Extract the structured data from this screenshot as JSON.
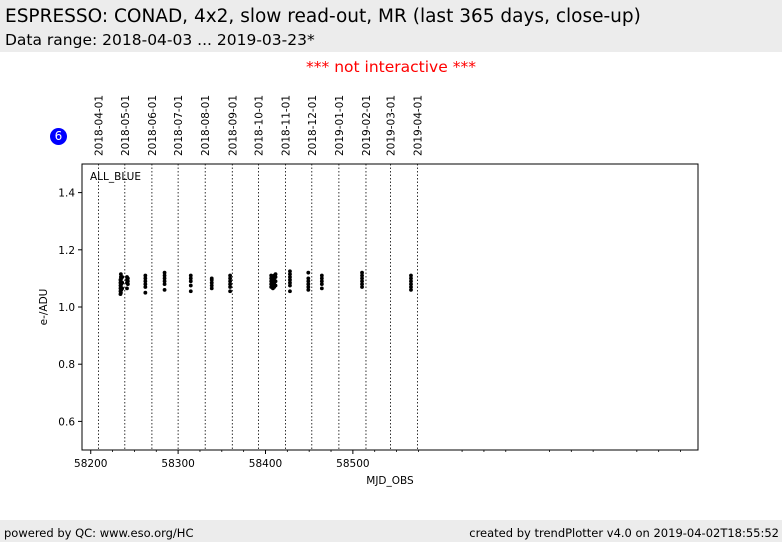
{
  "header": {
    "title": "ESPRESSO: CONAD, 4x2, slow read-out, MR (last 365 days, close-up)",
    "subtitle": "Data range: 2018-04-03 ... 2019-03-23*"
  },
  "notice": "*** not interactive ***",
  "badge": "6",
  "footer": {
    "left": "powered by QC: www.eso.org/HC",
    "right": "created by trendPlotter v4.0 on 2019-04-02T18:55:52"
  },
  "colors": {
    "header_bg": "#ececec",
    "notice": "#ff0000",
    "badge": "#0000ff",
    "points": "#000000"
  },
  "chart_data": {
    "type": "scatter",
    "panel_label": "ALL_BLUE",
    "xlabel": "MJD_OBS",
    "ylabel": "e-/ADU",
    "xlim": [
      58190,
      58895
    ],
    "ylim": [
      0.5,
      1.5
    ],
    "x_ticks": [
      58200,
      58300,
      58400,
      58500
    ],
    "y_ticks": [
      0.6,
      0.8,
      1.0,
      1.2,
      1.4
    ],
    "grid": false,
    "month_lines": [
      {
        "label": "2018-04-01",
        "mjd": 58209
      },
      {
        "label": "2018-05-01",
        "mjd": 58239
      },
      {
        "label": "2018-06-01",
        "mjd": 58270
      },
      {
        "label": "2018-07-01",
        "mjd": 58300
      },
      {
        "label": "2018-08-01",
        "mjd": 58331
      },
      {
        "label": "2018-09-01",
        "mjd": 58362
      },
      {
        "label": "2018-10-01",
        "mjd": 58392
      },
      {
        "label": "2018-11-01",
        "mjd": 58423
      },
      {
        "label": "2018-12-01",
        "mjd": 58453
      },
      {
        "label": "2019-01-01",
        "mjd": 58484
      },
      {
        "label": "2019-02-01",
        "mjd": 58515
      },
      {
        "label": "2019-03-01",
        "mjd": 58543
      },
      {
        "label": "2019-04-01",
        "mjd": 58574
      }
    ],
    "series": [
      {
        "points": [
          [
            58234.0,
            1.045
          ],
          [
            58234.0,
            1.055
          ],
          [
            58234.0,
            1.065
          ],
          [
            58234.0,
            1.075
          ],
          [
            58234.0,
            1.085
          ],
          [
            58234.0,
            1.095
          ],
          [
            58234.5,
            1.05
          ],
          [
            58234.5,
            1.07
          ],
          [
            58234.5,
            1.09
          ],
          [
            58234.5,
            1.105
          ],
          [
            58234.5,
            1.115
          ],
          [
            58235.0,
            1.06
          ],
          [
            58235.0,
            1.08
          ],
          [
            58235.0,
            1.1
          ],
          [
            58236.0,
            1.065
          ],
          [
            58236.0,
            1.085
          ],
          [
            58236.0,
            1.105
          ],
          [
            58241.5,
            1.065
          ],
          [
            58241.5,
            1.085
          ],
          [
            58241.5,
            1.095
          ],
          [
            58241.5,
            1.105
          ],
          [
            58242.5,
            1.08
          ],
          [
            58242.5,
            1.09
          ],
          [
            58242.5,
            1.1
          ],
          [
            58262.5,
            1.05
          ],
          [
            58262.5,
            1.07
          ],
          [
            58262.5,
            1.08
          ],
          [
            58262.5,
            1.09
          ],
          [
            58262.5,
            1.1
          ],
          [
            58262.5,
            1.11
          ],
          [
            58284.5,
            1.06
          ],
          [
            58284.5,
            1.08
          ],
          [
            58284.5,
            1.09
          ],
          [
            58284.5,
            1.1
          ],
          [
            58284.5,
            1.11
          ],
          [
            58284.5,
            1.12
          ],
          [
            58314.5,
            1.055
          ],
          [
            58314.5,
            1.075
          ],
          [
            58314.5,
            1.09
          ],
          [
            58314.5,
            1.1
          ],
          [
            58314.5,
            1.11
          ],
          [
            58338.5,
            1.065
          ],
          [
            58338.5,
            1.075
          ],
          [
            58338.5,
            1.085
          ],
          [
            58338.5,
            1.095
          ],
          [
            58338.5,
            1.1
          ],
          [
            58359.5,
            1.055
          ],
          [
            58359.5,
            1.07
          ],
          [
            58359.5,
            1.08
          ],
          [
            58359.5,
            1.09
          ],
          [
            58359.5,
            1.1
          ],
          [
            58359.5,
            1.11
          ],
          [
            58406.5,
            1.07
          ],
          [
            58406.5,
            1.08
          ],
          [
            58406.5,
            1.09
          ],
          [
            58406.5,
            1.1
          ],
          [
            58406.5,
            1.11
          ],
          [
            58408.5,
            1.065
          ],
          [
            58408.5,
            1.08
          ],
          [
            58408.5,
            1.095
          ],
          [
            58408.5,
            1.105
          ],
          [
            58410.0,
            1.07
          ],
          [
            58410.0,
            1.085
          ],
          [
            58410.0,
            1.1
          ],
          [
            58410.0,
            1.11
          ],
          [
            58411.5,
            1.075
          ],
          [
            58411.5,
            1.09
          ],
          [
            58411.5,
            1.105
          ],
          [
            58411.5,
            1.115
          ],
          [
            58428.0,
            1.055
          ],
          [
            58428.0,
            1.075
          ],
          [
            58428.0,
            1.085
          ],
          [
            58428.0,
            1.095
          ],
          [
            58428.0,
            1.105
          ],
          [
            58428.0,
            1.115
          ],
          [
            58428.0,
            1.125
          ],
          [
            58449.0,
            1.06
          ],
          [
            58449.0,
            1.07
          ],
          [
            58449.0,
            1.08
          ],
          [
            58449.0,
            1.09
          ],
          [
            58449.0,
            1.1
          ],
          [
            58449.0,
            1.12
          ],
          [
            58464.5,
            1.065
          ],
          [
            58464.5,
            1.08
          ],
          [
            58464.5,
            1.09
          ],
          [
            58464.5,
            1.1
          ],
          [
            58464.5,
            1.11
          ],
          [
            58510.5,
            1.07
          ],
          [
            58510.5,
            1.08
          ],
          [
            58510.5,
            1.09
          ],
          [
            58510.5,
            1.1
          ],
          [
            58510.5,
            1.11
          ],
          [
            58510.5,
            1.12
          ],
          [
            58566.5,
            1.06
          ],
          [
            58566.5,
            1.07
          ],
          [
            58566.5,
            1.08
          ],
          [
            58566.5,
            1.09
          ],
          [
            58566.5,
            1.1
          ],
          [
            58566.5,
            1.11
          ]
        ]
      }
    ]
  }
}
